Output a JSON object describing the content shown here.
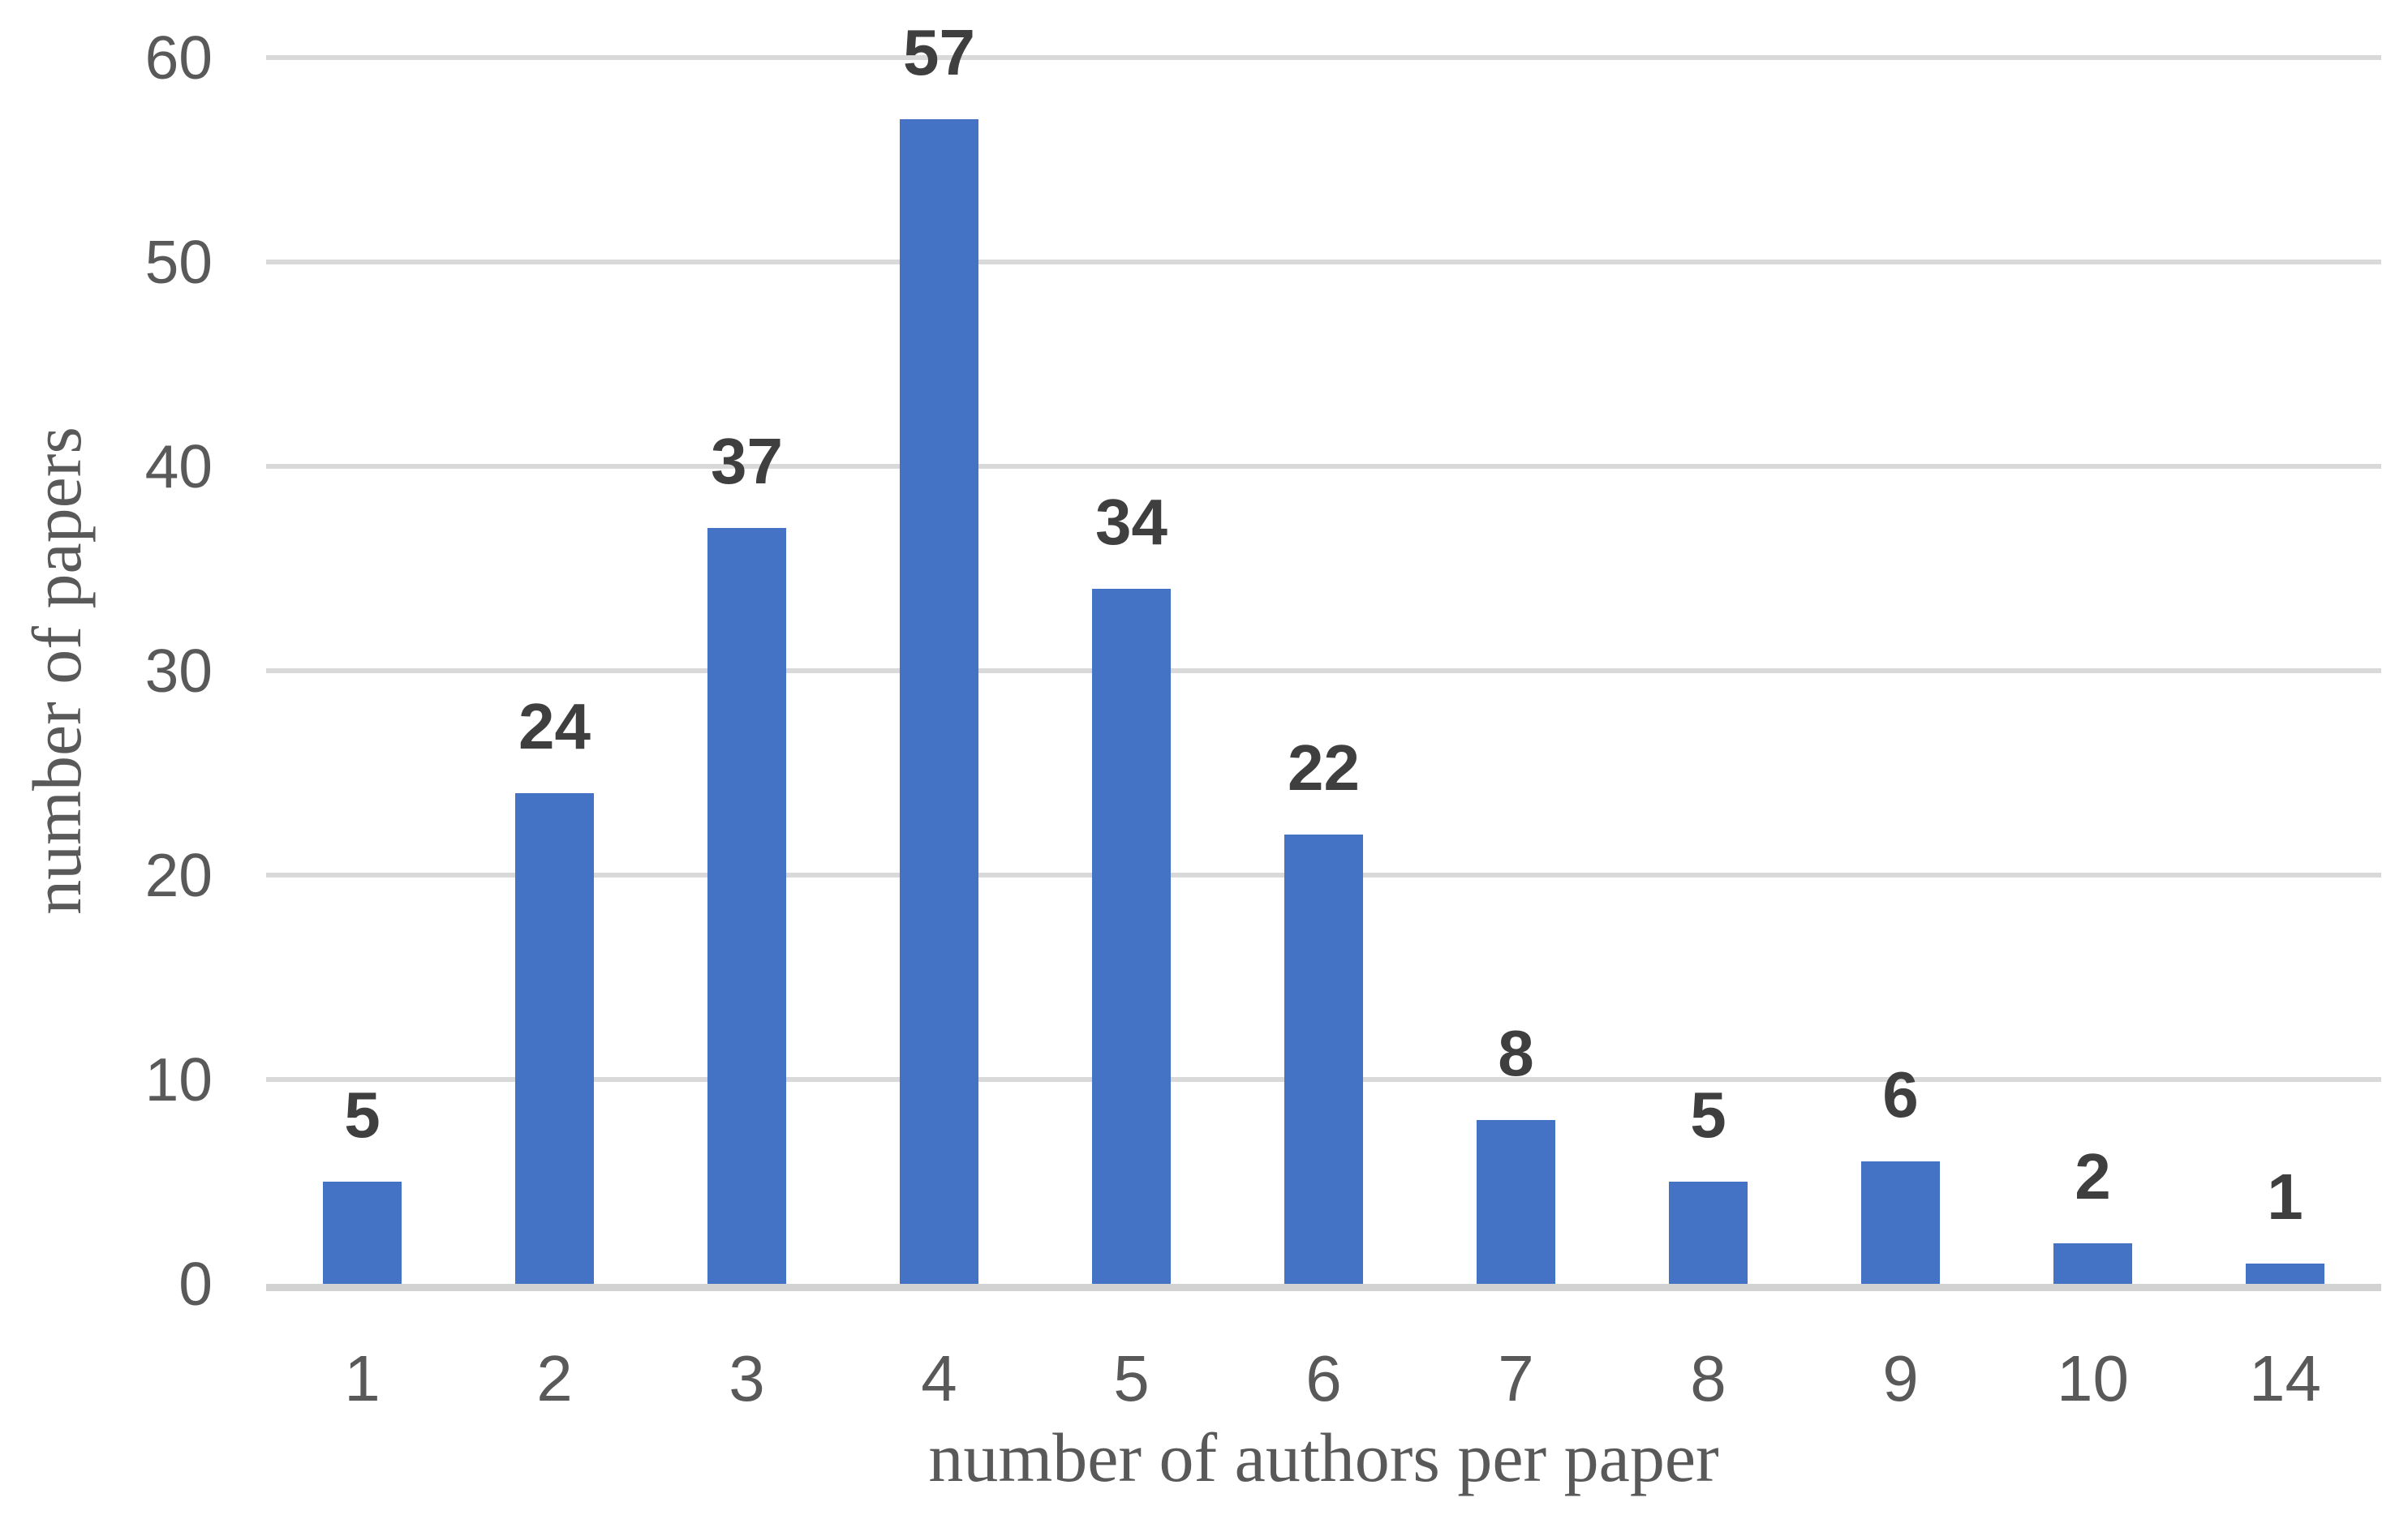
{
  "chart_data": {
    "type": "bar",
    "categories": [
      "1",
      "2",
      "3",
      "4",
      "5",
      "6",
      "7",
      "8",
      "9",
      "10",
      "14"
    ],
    "values": [
      5,
      24,
      37,
      57,
      34,
      22,
      8,
      5,
      6,
      2,
      1
    ],
    "data_labels": [
      "5",
      "24",
      "37",
      "57",
      "34",
      "22",
      "8",
      "5",
      "6",
      "2",
      "1"
    ],
    "title": "",
    "xlabel": "number of authors per paper",
    "ylabel": "number of papers",
    "ylim": [
      0,
      60
    ],
    "yticks": [
      0,
      10,
      20,
      30,
      40,
      50,
      60
    ],
    "grid": "horizontal-only",
    "legend_position": "none",
    "colors": {
      "bar": "#4472C4",
      "data_label": "#3F3F3F",
      "tick_label": "#595959",
      "axis_title": "#595959",
      "gridline": "#D9D9D9",
      "baseline": "#D2D2D2",
      "background": "#FFFFFF"
    }
  }
}
